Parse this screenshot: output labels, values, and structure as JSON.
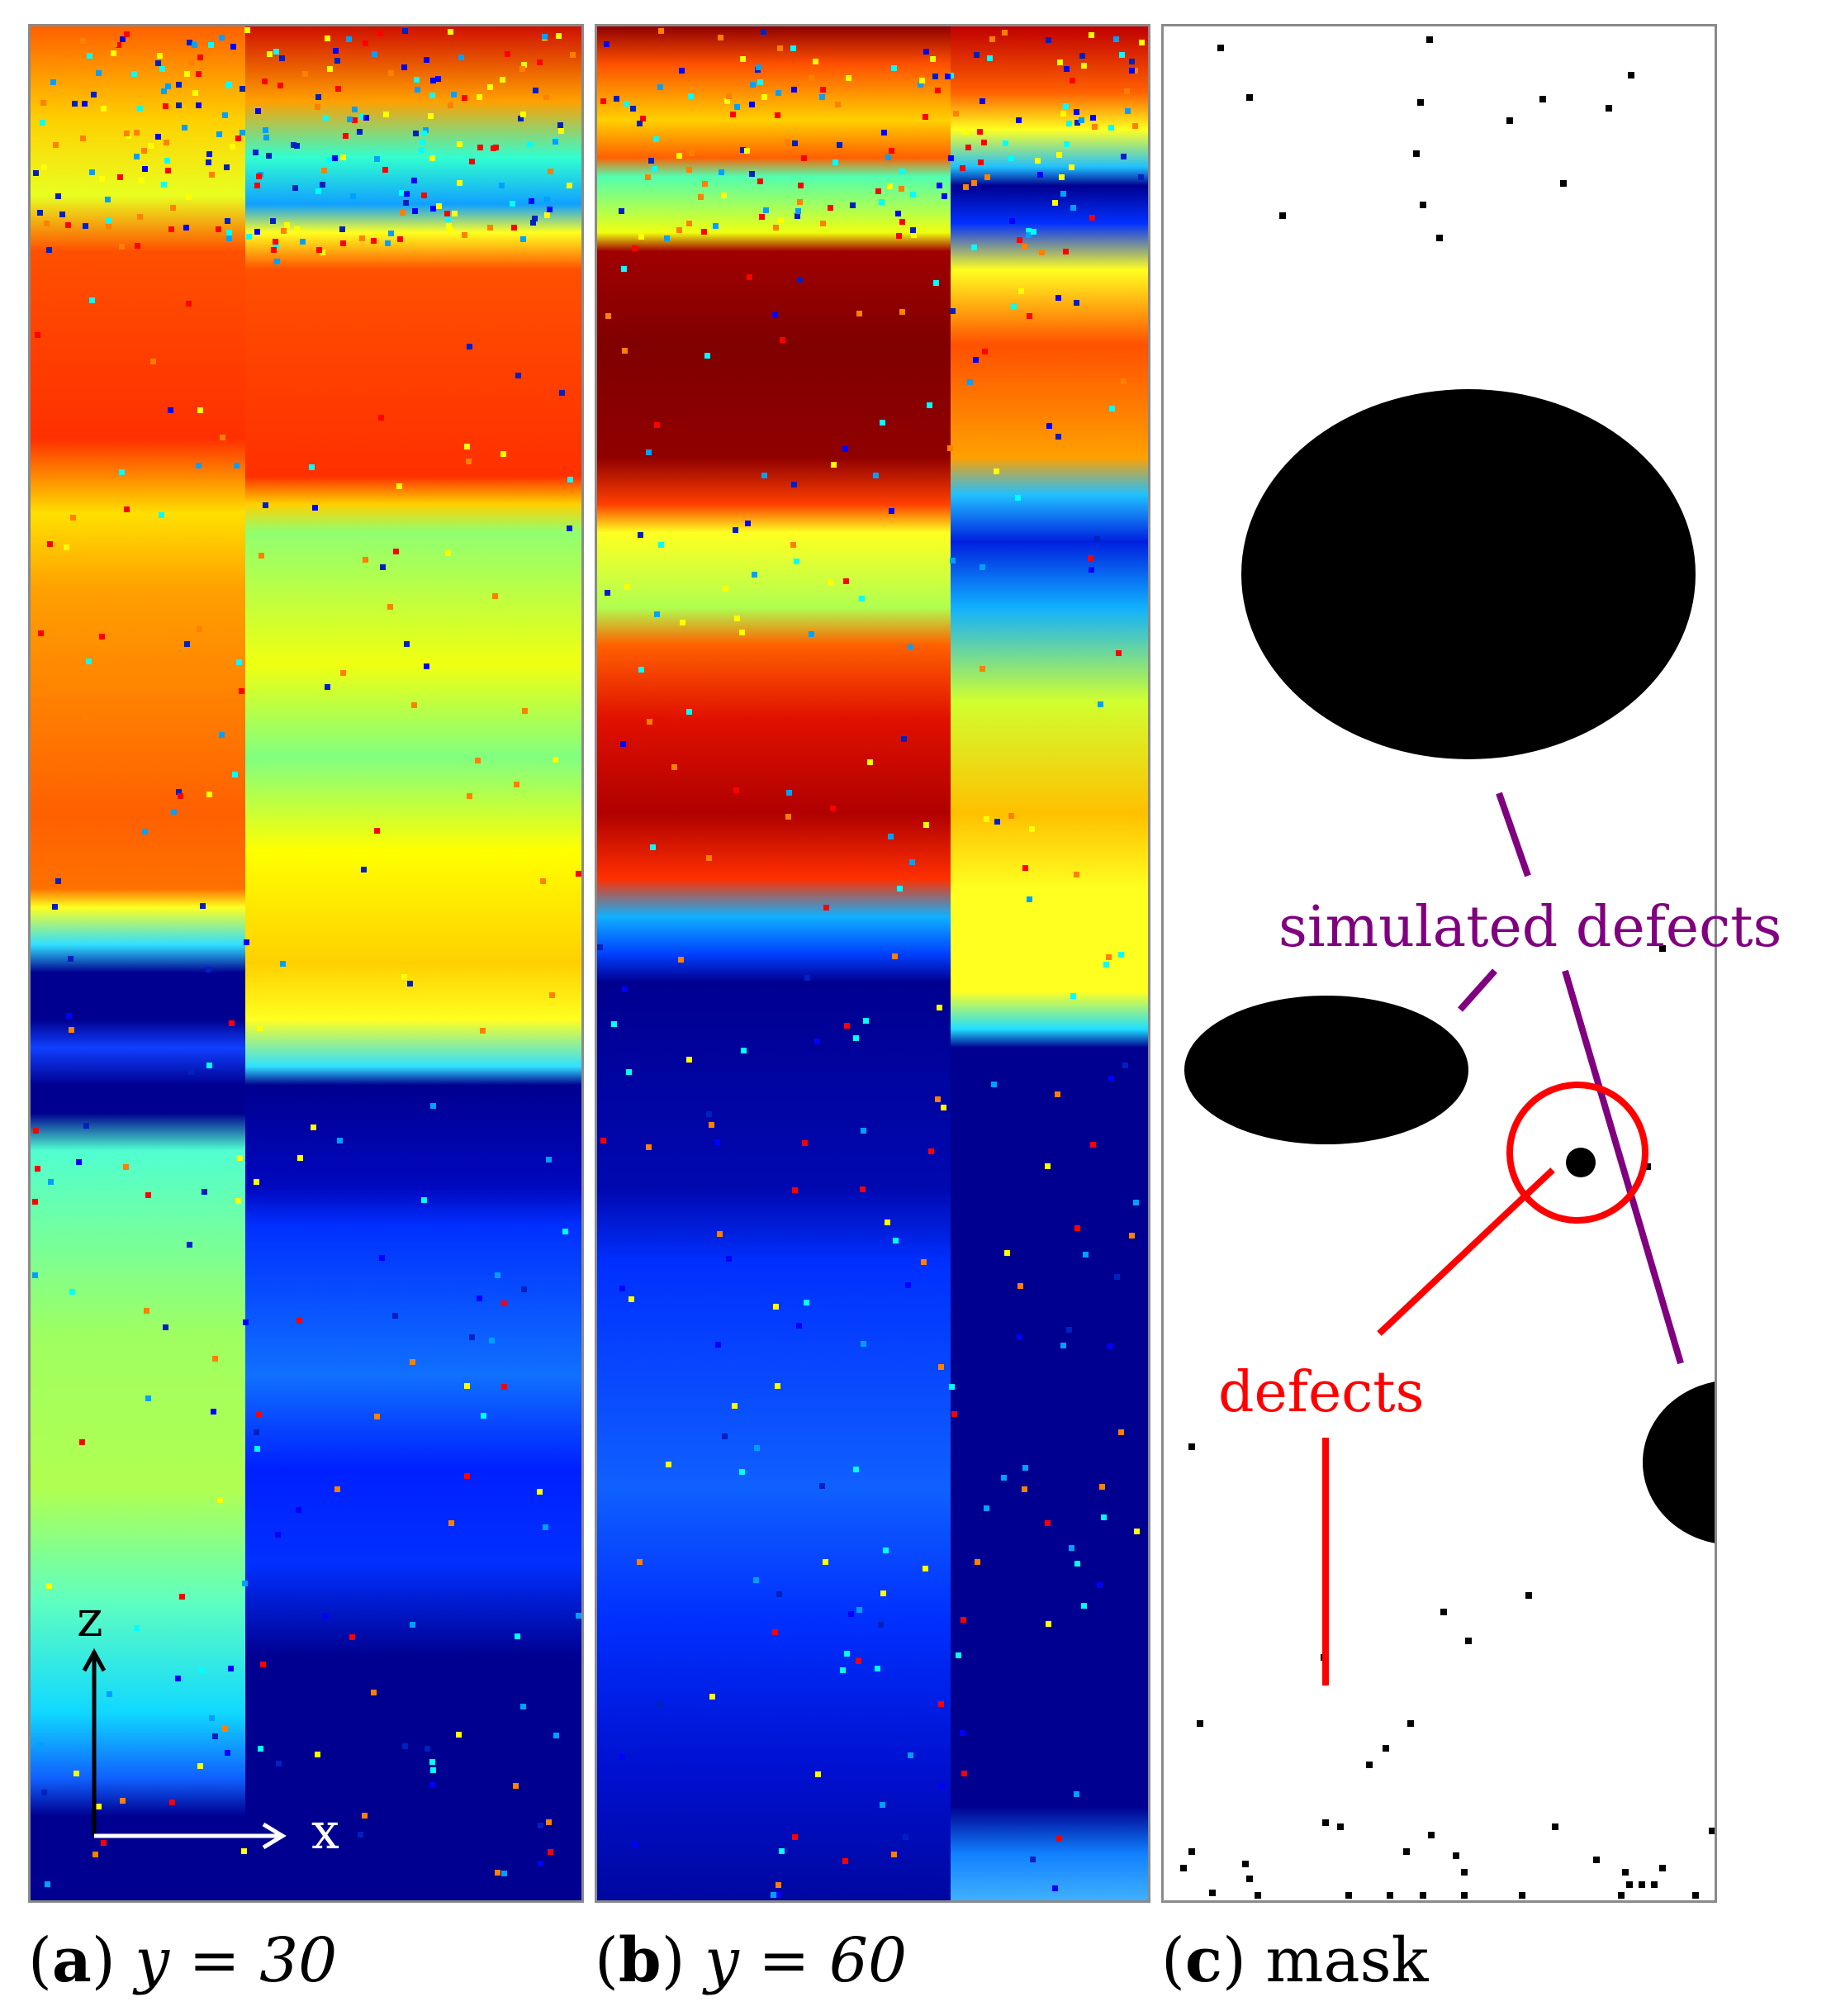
{
  "panels": [
    {
      "id": "a",
      "caption_letter": "a",
      "caption_math": "y = 30"
    },
    {
      "id": "b",
      "caption_letter": "b",
      "caption_math": "y = 60"
    },
    {
      "id": "c",
      "caption_letter": "c",
      "caption_text": "mask"
    }
  ],
  "annotations": {
    "simulated_defects": "simulated defects",
    "defects": "defects"
  },
  "axes": {
    "z_label": "z",
    "x_label": "x"
  },
  "colors": {
    "simulated_defects": "#800080",
    "defects": "#ff0000",
    "colormap": "jet"
  }
}
